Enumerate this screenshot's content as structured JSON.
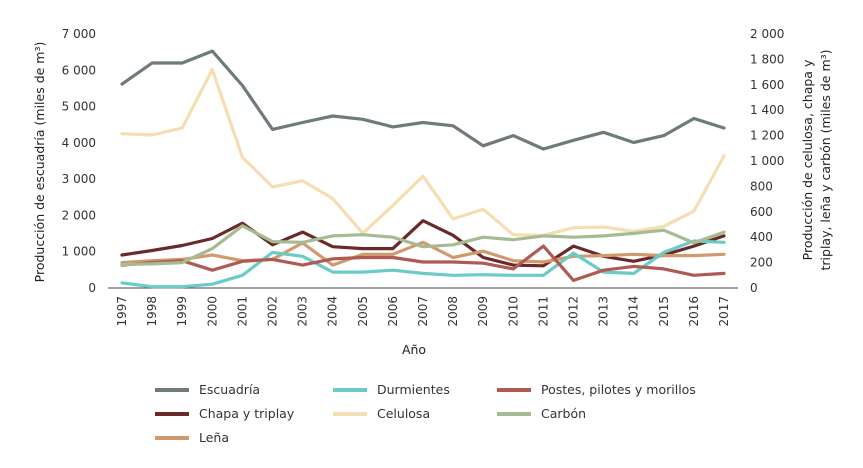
{
  "chart_data": {
    "type": "line",
    "x": [
      "1997",
      "1998",
      "1999",
      "2000",
      "2001",
      "2002",
      "2003",
      "2004",
      "2005",
      "2006",
      "2007",
      "2008",
      "2009",
      "2010",
      "2011",
      "2012",
      "2013",
      "2014",
      "2015",
      "2016",
      "2017"
    ],
    "xlabel": "Año",
    "ylabel_left": "Producción de escuadría (miles de m³)",
    "ylabel_right_lines": [
      "Producción de celulosa, chapa y",
      "triplay, leña y carbón (miles de m³)"
    ],
    "ylim_left": [
      0,
      7000
    ],
    "ylim_right": [
      0,
      2000
    ],
    "yticks_left": [
      "0",
      "1 000",
      "2 000",
      "3 000",
      "4 000",
      "5 000",
      "6 000",
      "7 000"
    ],
    "yticks_right": [
      "0",
      "200",
      "400",
      "600",
      "800",
      "1 000",
      "1 200",
      "1 400",
      "1 600",
      "1 800",
      "2 000"
    ],
    "series": [
      {
        "name": "Escuadría",
        "axis": "left",
        "color": "#6e7b78",
        "values": [
          5620,
          6200,
          6200,
          6530,
          5580,
          4370,
          4560,
          4740,
          4650,
          4440,
          4560,
          4470,
          3920,
          4200,
          3830,
          4070,
          4290,
          4010,
          4200,
          4670,
          4410
        ]
      },
      {
        "name": "Chapa y triplay",
        "axis": "right",
        "color": "#6b2a2a",
        "values": [
          260,
          295,
          335,
          390,
          510,
          340,
          440,
          325,
          310,
          310,
          530,
          415,
          240,
          180,
          175,
          330,
          250,
          210,
          260,
          330,
          410
        ]
      },
      {
        "name": "Leña",
        "axis": "right",
        "color": "#d19a6e",
        "values": [
          200,
          215,
          225,
          260,
          215,
          225,
          355,
          180,
          265,
          265,
          360,
          240,
          290,
          215,
          205,
          250,
          255,
          265,
          255,
          255,
          265
        ]
      },
      {
        "name": "Durmientes",
        "axis": "right",
        "color": "#6bcbc6",
        "values": [
          40,
          10,
          10,
          30,
          100,
          280,
          250,
          125,
          125,
          140,
          115,
          100,
          105,
          100,
          100,
          275,
          125,
          115,
          280,
          370,
          360
        ]
      },
      {
        "name": "Celulosa",
        "axis": "right",
        "color": "#f4deb2",
        "values": [
          1215,
          1205,
          1260,
          1720,
          1030,
          795,
          845,
          705,
          430,
          650,
          880,
          545,
          620,
          420,
          415,
          475,
          480,
          445,
          485,
          605,
          1040
        ]
      },
      {
        "name": "Postes, pilotes y morillos",
        "axis": "right",
        "color": "#b05a54",
        "values": [
          180,
          200,
          215,
          140,
          210,
          225,
          180,
          230,
          240,
          240,
          205,
          205,
          195,
          150,
          330,
          60,
          140,
          170,
          150,
          100,
          115
        ]
      },
      {
        "name": "Carbón",
        "axis": "right",
        "color": "#a5bb92",
        "values": [
          185,
          190,
          200,
          310,
          490,
          365,
          360,
          410,
          420,
          400,
          325,
          340,
          400,
          380,
          410,
          400,
          410,
          430,
          455,
          355,
          440
        ]
      }
    ],
    "legend_order": [
      "Escuadría",
      "Durmientes",
      "Postes, pilotes y morillos",
      "Chapa y triplay",
      "Celulosa",
      "Carbón",
      "Leña"
    ],
    "legend_position": "bottom"
  }
}
